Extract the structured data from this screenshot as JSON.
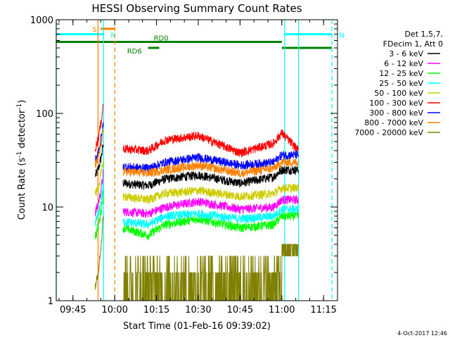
{
  "chart_data": {
    "type": "line",
    "title": "HESSI Observing Summary Count Rates",
    "xlabel": "Start Time (01-Feb-16 09:39:02)",
    "ylabel": "Count Rate (s",
    "ylabel_sup": "-1",
    "ylabel_mid": " detector",
    "ylabel_end": ")",
    "xlim": [
      "09:39",
      "11:20"
    ],
    "ylim": [
      1,
      1000
    ],
    "yscale": "log",
    "x_ticks": [
      "09:45",
      "10:00",
      "10:15",
      "10:30",
      "10:45",
      "11:00",
      "11:15"
    ],
    "y_ticks": [
      "1",
      "10",
      "100",
      "1000"
    ],
    "legend": {
      "placement": "right",
      "header": [
        "Det 1,5,7,",
        "FDecim 1, Att 0"
      ],
      "entries": [
        {
          "label": "3 - 6 keV",
          "color": "#000000"
        },
        {
          "label": "6 - 12 keV",
          "color": "#ff00ff"
        },
        {
          "label": "12 - 25 keV",
          "color": "#00ff00"
        },
        {
          "label": "25 - 50 keV",
          "color": "#00ffff"
        },
        {
          "label": "50 - 100 keV",
          "color": "#cccc00"
        },
        {
          "label": "100 - 300 keV",
          "color": "#ff0000"
        },
        {
          "label": "300 - 800 keV",
          "color": "#0000ff"
        },
        {
          "label": "800 - 7000 keV",
          "color": "#ff8000"
        },
        {
          "label": "7000 - 20000 keV",
          "color": "#808000"
        }
      ]
    },
    "flags": [
      {
        "label": "S",
        "color": "#ff8000",
        "y": 800,
        "start": "09:55",
        "end": "10:00"
      },
      {
        "label": "N",
        "color": "#00ffff",
        "y": 700,
        "start": "09:39",
        "end": "09:56"
      },
      {
        "label": "N",
        "color": "#00ffff",
        "y": 700,
        "start": "11:01",
        "end": "11:18"
      },
      {
        "label": "RD0",
        "color": "#008000",
        "y": 580,
        "start": "09:39",
        "end": "11:00"
      },
      {
        "label": "RD6",
        "color": "#008000",
        "y": 500,
        "start": "10:12",
        "end": "10:16"
      },
      {
        "label": "",
        "color": "#008000",
        "y": 500,
        "start": "11:00",
        "end": "11:18"
      }
    ],
    "vlines": [
      {
        "x": "09:39",
        "color": "#00ffff",
        "style": "solid"
      },
      {
        "x": "09:54",
        "color": "#ff8000",
        "style": "solid"
      },
      {
        "x": "09:56",
        "color": "#00ffff",
        "style": "solid"
      },
      {
        "x": "10:00",
        "color": "#ff8000",
        "style": "dashed"
      },
      {
        "x": "11:01",
        "color": "#00ffff",
        "style": "solid"
      },
      {
        "x": "11:06",
        "color": "#ff8000",
        "style": "solid"
      },
      {
        "x": "11:06",
        "color": "#00ffff",
        "style": "solid"
      },
      {
        "x": "11:18",
        "color": "#00ffff",
        "style": "dashed"
      }
    ],
    "series": [
      {
        "color": "#000000",
        "pre": [
          22,
          48
        ],
        "levels": [
          [
            "10:03",
            18
          ],
          [
            "10:12",
            17
          ],
          [
            "10:18",
            20
          ],
          [
            "10:30",
            22
          ],
          [
            "10:45",
            18
          ],
          [
            "10:57",
            21
          ],
          [
            "11:00",
            25
          ],
          [
            "11:06",
            25
          ]
        ]
      },
      {
        "color": "#ff00ff",
        "pre": [
          9,
          24
        ],
        "levels": [
          [
            "10:03",
            9
          ],
          [
            "10:12",
            8.5
          ],
          [
            "10:18",
            10
          ],
          [
            "10:30",
            11.5
          ],
          [
            "10:45",
            9.5
          ],
          [
            "10:57",
            10
          ],
          [
            "11:00",
            12
          ],
          [
            "11:06",
            12
          ]
        ]
      },
      {
        "color": "#00ff00",
        "pre": [
          5,
          15
        ],
        "levels": [
          [
            "10:03",
            6
          ],
          [
            "10:12",
            5
          ],
          [
            "10:18",
            6.5
          ],
          [
            "10:30",
            7.5
          ],
          [
            "10:45",
            6
          ],
          [
            "10:57",
            6.5
          ],
          [
            "11:00",
            8
          ],
          [
            "11:06",
            8
          ]
        ]
      },
      {
        "color": "#00ffff",
        "pre": [
          7,
          18
        ],
        "levels": [
          [
            "10:03",
            7
          ],
          [
            "10:12",
            6.5
          ],
          [
            "10:18",
            8
          ],
          [
            "10:30",
            8.5
          ],
          [
            "10:45",
            7.5
          ],
          [
            "10:57",
            8
          ],
          [
            "11:00",
            9.5
          ],
          [
            "11:06",
            9.5
          ]
        ]
      },
      {
        "color": "#cccc00",
        "pre": [
          14,
          33
        ],
        "levels": [
          [
            "10:03",
            13
          ],
          [
            "10:12",
            12
          ],
          [
            "10:18",
            14
          ],
          [
            "10:30",
            15
          ],
          [
            "10:45",
            13
          ],
          [
            "10:57",
            14
          ],
          [
            "11:00",
            16
          ],
          [
            "11:06",
            16
          ]
        ]
      },
      {
        "color": "#ff0000",
        "pre": [
          44,
          135
        ],
        "levels": [
          [
            "10:03",
            42
          ],
          [
            "10:12",
            40
          ],
          [
            "10:18",
            52
          ],
          [
            "10:30",
            58
          ],
          [
            "10:45",
            38
          ],
          [
            "10:57",
            48
          ],
          [
            "11:00",
            62
          ],
          [
            "11:06",
            40
          ]
        ]
      },
      {
        "color": "#0000ff",
        "pre": [
          33,
          80
        ],
        "levels": [
          [
            "10:03",
            27
          ],
          [
            "10:12",
            26
          ],
          [
            "10:18",
            30
          ],
          [
            "10:30",
            34
          ],
          [
            "10:45",
            28
          ],
          [
            "10:57",
            30
          ],
          [
            "11:00",
            36
          ],
          [
            "11:06",
            36
          ]
        ]
      },
      {
        "color": "#ff8000",
        "pre": [
          28,
          70
        ],
        "levels": [
          [
            "10:03",
            24
          ],
          [
            "10:12",
            23
          ],
          [
            "10:18",
            25
          ],
          [
            "10:30",
            28
          ],
          [
            "10:45",
            23
          ],
          [
            "10:57",
            26
          ],
          [
            "11:00",
            30
          ],
          [
            "11:06",
            30
          ]
        ]
      },
      {
        "color": "#808000",
        "pre": [
          1.5,
          9
        ],
        "levels": [
          [
            "10:03",
            1.3
          ],
          [
            "10:12",
            1.3
          ],
          [
            "10:18",
            1.6
          ],
          [
            "10:30",
            2.5
          ],
          [
            "10:45",
            1.6
          ],
          [
            "10:57",
            1.5
          ],
          [
            "11:00",
            3
          ],
          [
            "11:06",
            4
          ]
        ]
      }
    ]
  },
  "footer": {
    "date": "4-Oct-2017 12:46"
  }
}
